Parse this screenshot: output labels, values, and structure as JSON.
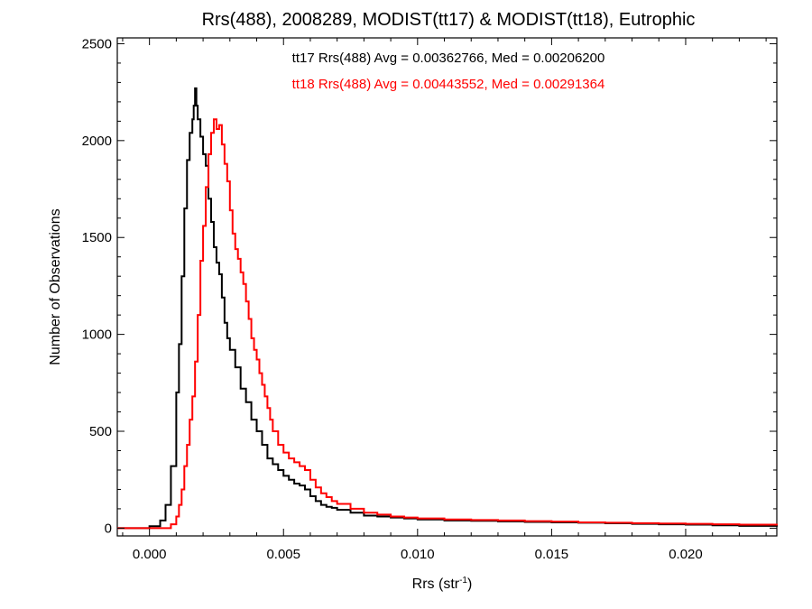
{
  "chart_data": {
    "type": "histogram-step",
    "title": "Rrs(488), 2008289, MODIST(tt17) & MODIST(tt18), Eutrophic",
    "xlabel_main": "Rrs (str",
    "xlabel_sup": "-1",
    "xlabel_close": ")",
    "ylabel": "Number of Observations",
    "xlim": [
      -0.0012,
      0.0234
    ],
    "ylim": [
      -40,
      2530
    ],
    "x_ticks": [
      {
        "value": 0.0,
        "label": "0.000"
      },
      {
        "value": 0.005,
        "label": "0.005"
      },
      {
        "value": 0.01,
        "label": "0.010"
      },
      {
        "value": 0.015,
        "label": "0.015"
      },
      {
        "value": 0.02,
        "label": "0.020"
      }
    ],
    "y_ticks": [
      {
        "value": 0,
        "label": "0"
      },
      {
        "value": 500,
        "label": "500"
      },
      {
        "value": 1000,
        "label": "1000"
      },
      {
        "value": 1500,
        "label": "1500"
      },
      {
        "value": 2000,
        "label": "2000"
      },
      {
        "value": 2500,
        "label": "2500"
      }
    ],
    "annotations": [
      {
        "text": "tt17 Rrs(488) Avg = 0.00362766, Med = 0.00206200",
        "color": "#000000"
      },
      {
        "text": "tt18 Rrs(488) Avg = 0.00443552, Med = 0.00291364",
        "color": "#ff0000"
      }
    ],
    "series": [
      {
        "color": "#000000",
        "points": [
          [
            -0.0012,
            0
          ],
          [
            0.0,
            10
          ],
          [
            0.0004,
            40
          ],
          [
            0.0006,
            120
          ],
          [
            0.0008,
            320
          ],
          [
            0.001,
            700
          ],
          [
            0.0011,
            950
          ],
          [
            0.0012,
            1300
          ],
          [
            0.0013,
            1650
          ],
          [
            0.0014,
            1900
          ],
          [
            0.0015,
            2040
          ],
          [
            0.0016,
            2110
          ],
          [
            0.00165,
            2180
          ],
          [
            0.0017,
            2270
          ],
          [
            0.00175,
            2180
          ],
          [
            0.0018,
            2110
          ],
          [
            0.0019,
            2020
          ],
          [
            0.002,
            1930
          ],
          [
            0.0021,
            1870
          ],
          [
            0.0022,
            1700
          ],
          [
            0.0023,
            1580
          ],
          [
            0.0024,
            1450
          ],
          [
            0.0025,
            1370
          ],
          [
            0.0026,
            1310
          ],
          [
            0.0027,
            1190
          ],
          [
            0.0028,
            1060
          ],
          [
            0.0029,
            980
          ],
          [
            0.003,
            920
          ],
          [
            0.0032,
            830
          ],
          [
            0.0034,
            720
          ],
          [
            0.0036,
            650
          ],
          [
            0.0038,
            560
          ],
          [
            0.004,
            500
          ],
          [
            0.0042,
            430
          ],
          [
            0.0044,
            360
          ],
          [
            0.0046,
            330
          ],
          [
            0.0048,
            300
          ],
          [
            0.005,
            270
          ],
          [
            0.0052,
            250
          ],
          [
            0.0054,
            230
          ],
          [
            0.0056,
            220
          ],
          [
            0.0058,
            200
          ],
          [
            0.006,
            165
          ],
          [
            0.0062,
            140
          ],
          [
            0.0064,
            120
          ],
          [
            0.0066,
            110
          ],
          [
            0.0068,
            105
          ],
          [
            0.007,
            95
          ],
          [
            0.0075,
            80
          ],
          [
            0.008,
            65
          ],
          [
            0.0085,
            60
          ],
          [
            0.009,
            55
          ],
          [
            0.0095,
            50
          ],
          [
            0.01,
            45
          ],
          [
            0.011,
            40
          ],
          [
            0.012,
            38
          ],
          [
            0.013,
            35
          ],
          [
            0.014,
            32
          ],
          [
            0.015,
            30
          ],
          [
            0.016,
            28
          ],
          [
            0.017,
            25
          ],
          [
            0.018,
            22
          ],
          [
            0.019,
            20
          ],
          [
            0.02,
            18
          ],
          [
            0.021,
            15
          ],
          [
            0.022,
            12
          ],
          [
            0.0234,
            8
          ]
        ]
      },
      {
        "color": "#ff0000",
        "points": [
          [
            -0.0012,
            0
          ],
          [
            0.0006,
            0
          ],
          [
            0.0008,
            20
          ],
          [
            0.001,
            60
          ],
          [
            0.0011,
            120
          ],
          [
            0.0012,
            200
          ],
          [
            0.0013,
            320
          ],
          [
            0.0014,
            430
          ],
          [
            0.0015,
            560
          ],
          [
            0.0016,
            680
          ],
          [
            0.0017,
            860
          ],
          [
            0.0018,
            1100
          ],
          [
            0.0019,
            1380
          ],
          [
            0.002,
            1560
          ],
          [
            0.0021,
            1760
          ],
          [
            0.0022,
            1930
          ],
          [
            0.0023,
            2040
          ],
          [
            0.0024,
            2110
          ],
          [
            0.0025,
            2060
          ],
          [
            0.0026,
            2080
          ],
          [
            0.0027,
            1980
          ],
          [
            0.0028,
            1880
          ],
          [
            0.0029,
            1790
          ],
          [
            0.003,
            1640
          ],
          [
            0.0031,
            1520
          ],
          [
            0.0032,
            1440
          ],
          [
            0.0033,
            1390
          ],
          [
            0.0034,
            1320
          ],
          [
            0.0035,
            1260
          ],
          [
            0.0036,
            1170
          ],
          [
            0.0037,
            1080
          ],
          [
            0.0038,
            980
          ],
          [
            0.0039,
            920
          ],
          [
            0.004,
            870
          ],
          [
            0.0041,
            800
          ],
          [
            0.0042,
            740
          ],
          [
            0.0043,
            680
          ],
          [
            0.0044,
            620
          ],
          [
            0.0045,
            560
          ],
          [
            0.0046,
            500
          ],
          [
            0.0048,
            430
          ],
          [
            0.005,
            390
          ],
          [
            0.0052,
            360
          ],
          [
            0.0054,
            340
          ],
          [
            0.0056,
            320
          ],
          [
            0.0058,
            300
          ],
          [
            0.006,
            250
          ],
          [
            0.0062,
            210
          ],
          [
            0.0064,
            180
          ],
          [
            0.0066,
            160
          ],
          [
            0.0068,
            140
          ],
          [
            0.007,
            125
          ],
          [
            0.0075,
            100
          ],
          [
            0.008,
            80
          ],
          [
            0.0085,
            70
          ],
          [
            0.009,
            60
          ],
          [
            0.0095,
            55
          ],
          [
            0.01,
            50
          ],
          [
            0.011,
            45
          ],
          [
            0.012,
            42
          ],
          [
            0.013,
            40
          ],
          [
            0.014,
            36
          ],
          [
            0.015,
            34
          ],
          [
            0.016,
            30
          ],
          [
            0.017,
            28
          ],
          [
            0.018,
            26
          ],
          [
            0.019,
            24
          ],
          [
            0.02,
            22
          ],
          [
            0.021,
            20
          ],
          [
            0.022,
            18
          ],
          [
            0.0234,
            14
          ]
        ]
      }
    ]
  }
}
